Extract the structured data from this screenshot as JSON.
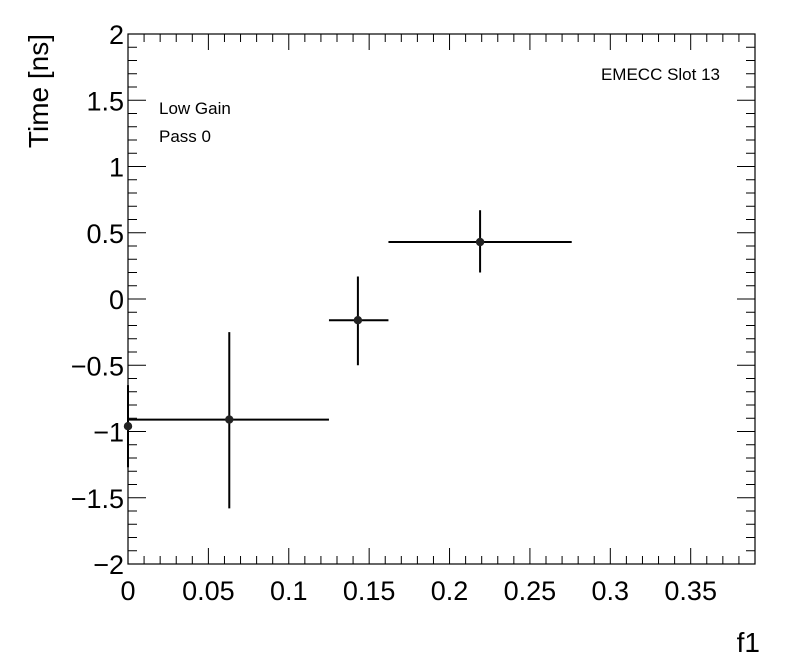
{
  "chart_data": {
    "type": "scatter",
    "xlabel": "f1",
    "ylabel": "Time [ns]",
    "xlim": [
      0,
      0.39
    ],
    "ylim": [
      -2,
      2
    ],
    "x_ticks": [
      0,
      0.05,
      0.1,
      0.15,
      0.2,
      0.25,
      0.3,
      0.35
    ],
    "x_tick_labels": [
      "0",
      "0.05",
      "0.1",
      "0.15",
      "0.2",
      "0.25",
      "0.3",
      "0.35"
    ],
    "y_ticks": [
      -2,
      -1.5,
      -1,
      -0.5,
      0,
      0.5,
      1,
      1.5,
      2
    ],
    "y_tick_labels": [
      "−2",
      "−1.5",
      "−1",
      "−0.5",
      "0",
      "0.5",
      "1",
      "1.5",
      "2"
    ],
    "annotations": {
      "top_right": "EMECC Slot 13",
      "top_left": [
        "Low Gain",
        "Pass 0"
      ]
    },
    "grid": false,
    "points": [
      {
        "x": 0.0,
        "y": -0.96,
        "x_lo": 0.0,
        "x_hi": 0.0,
        "y_lo": -1.27,
        "y_hi": -0.65
      },
      {
        "x": 0.063,
        "y": -0.91,
        "x_lo": 0.0,
        "x_hi": 0.125,
        "y_lo": -1.58,
        "y_hi": -0.25
      },
      {
        "x": 0.143,
        "y": -0.16,
        "x_lo": 0.125,
        "x_hi": 0.162,
        "y_lo": -0.5,
        "y_hi": 0.17
      },
      {
        "x": 0.219,
        "y": 0.43,
        "x_lo": 0.162,
        "x_hi": 0.276,
        "y_lo": 0.2,
        "y_hi": 0.67
      }
    ]
  }
}
